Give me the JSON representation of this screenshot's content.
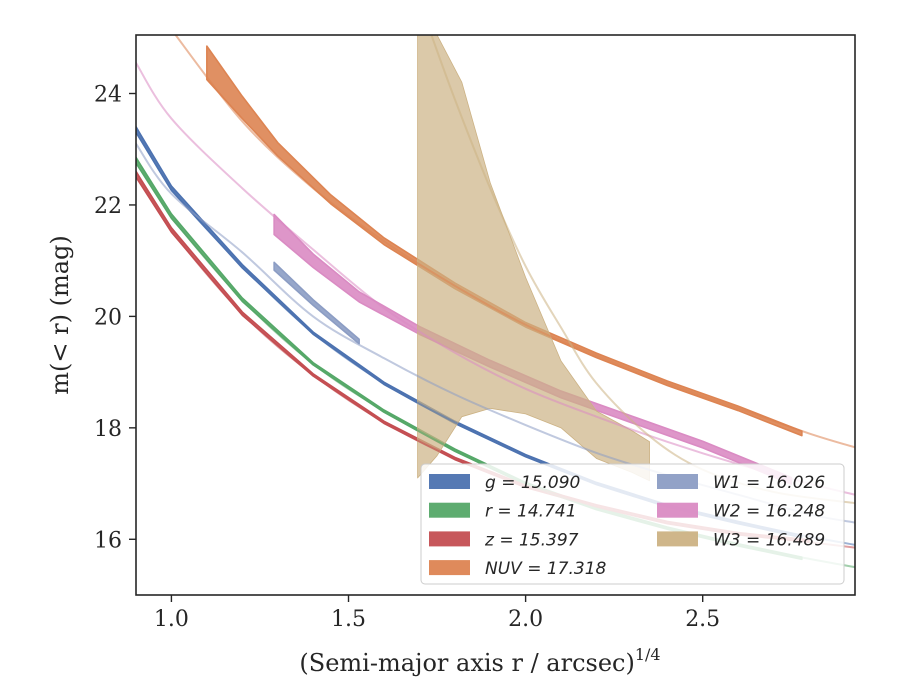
{
  "chart_data": {
    "type": "line",
    "xlabel": "(Semi-major axis r / arcsec)",
    "xlabel_superscript": "1/4",
    "ylabel": "m(< r) (mag)",
    "xlim": [
      0.9,
      2.93
    ],
    "ylim": [
      25.05,
      15.0
    ],
    "y_inverted": true,
    "x_ticks": [
      1.0,
      1.5,
      2.0,
      2.5
    ],
    "x_tick_labels": [
      "1.0",
      "1.5",
      "2.0",
      "2.5"
    ],
    "y_ticks": [
      16,
      18,
      20,
      22,
      24
    ],
    "y_tick_labels": [
      "16",
      "18",
      "20",
      "22",
      "24"
    ],
    "grid": false,
    "legend_position": "lower-right",
    "series": [
      {
        "name": "g = 15.090",
        "color": "#4c72b0",
        "model_x": [
          0.9,
          1.0,
          1.2,
          1.4,
          1.6,
          1.8,
          2.0,
          2.2,
          2.4,
          2.6,
          2.8,
          2.93
        ],
        "model_y": [
          23.4,
          22.3,
          20.9,
          19.7,
          18.8,
          18.1,
          17.5,
          17.0,
          16.6,
          16.3,
          16.05,
          15.9
        ],
        "band_x": [
          0.9,
          1.0,
          1.2,
          1.4,
          1.6,
          1.8,
          2.0,
          2.2,
          2.4,
          2.6,
          2.78
        ],
        "band_y": [
          23.35,
          22.3,
          20.9,
          19.7,
          18.8,
          18.1,
          17.5,
          17.0,
          16.6,
          16.3,
          16.05
        ],
        "band_err": [
          0.05,
          0.04,
          0.03,
          0.02,
          0.02,
          0.02,
          0.02,
          0.02,
          0.02,
          0.02,
          0.02
        ]
      },
      {
        "name": "r = 14.741",
        "color": "#55a868",
        "model_x": [
          0.9,
          1.0,
          1.2,
          1.4,
          1.6,
          1.8,
          2.0,
          2.2,
          2.4,
          2.6,
          2.8,
          2.93
        ],
        "model_y": [
          22.85,
          21.8,
          20.3,
          19.15,
          18.3,
          17.6,
          17.0,
          16.55,
          16.2,
          15.9,
          15.65,
          15.5
        ],
        "band_x": [
          0.9,
          1.0,
          1.2,
          1.4,
          1.6,
          1.8,
          2.0,
          2.2,
          2.4,
          2.6,
          2.78
        ],
        "band_y": [
          22.8,
          21.8,
          20.3,
          19.15,
          18.3,
          17.6,
          17.0,
          16.55,
          16.2,
          15.9,
          15.66
        ],
        "band_err": [
          0.05,
          0.04,
          0.03,
          0.02,
          0.02,
          0.02,
          0.02,
          0.02,
          0.02,
          0.02,
          0.02
        ]
      },
      {
        "name": "z = 15.397",
        "color": "#c44e52",
        "model_x": [
          0.9,
          1.0,
          1.2,
          1.4,
          1.6,
          1.8,
          2.0,
          2.2,
          2.4,
          2.6,
          2.8,
          2.93
        ],
        "model_y": [
          22.6,
          21.55,
          20.05,
          18.95,
          18.1,
          17.45,
          16.95,
          16.6,
          16.3,
          16.1,
          15.95,
          15.85
        ],
        "band_x": [
          0.9,
          1.0,
          1.2,
          1.4,
          1.6,
          1.8,
          2.0,
          2.2,
          2.4,
          2.6,
          2.8
        ],
        "band_y": [
          22.55,
          21.55,
          20.05,
          18.95,
          18.1,
          17.45,
          16.95,
          16.6,
          16.3,
          16.1,
          15.97
        ],
        "band_err": [
          0.05,
          0.04,
          0.03,
          0.02,
          0.02,
          0.02,
          0.02,
          0.02,
          0.02,
          0.02,
          0.02
        ]
      },
      {
        "name": "NUV = 17.318",
        "color": "#dd8452",
        "model_x": [
          1.0,
          1.2,
          1.4,
          1.6,
          1.8,
          2.0,
          2.2,
          2.4,
          2.6,
          2.8,
          2.93
        ],
        "model_y": [
          25.15,
          23.5,
          22.3,
          21.35,
          20.55,
          19.85,
          19.3,
          18.8,
          18.35,
          17.9,
          17.65
        ],
        "band_x": [
          1.1,
          1.2,
          1.3,
          1.45,
          1.6,
          1.8,
          2.0,
          2.2,
          2.4,
          2.6,
          2.78
        ],
        "band_y": [
          24.55,
          23.75,
          23.0,
          22.1,
          21.35,
          20.55,
          19.85,
          19.3,
          18.8,
          18.35,
          17.9
        ],
        "band_err": [
          0.3,
          0.2,
          0.12,
          0.08,
          0.06,
          0.05,
          0.04,
          0.04,
          0.04,
          0.04,
          0.04
        ]
      },
      {
        "name": "W1 = 16.026",
        "color": "#8c9dc4",
        "model_x": [
          0.9,
          1.0,
          1.2,
          1.4,
          1.6,
          1.8,
          2.0,
          2.2,
          2.4,
          2.6,
          2.8,
          2.93
        ],
        "model_y": [
          23.1,
          22.2,
          21.15,
          20.0,
          19.25,
          18.6,
          18.05,
          17.55,
          17.15,
          16.8,
          16.45,
          16.3
        ],
        "band_x": [
          1.29,
          1.4,
          1.53
        ],
        "band_y": [
          20.9,
          20.25,
          19.55
        ],
        "band_err": [
          0.07,
          0.05,
          0.04
        ]
      },
      {
        "name": "W2 = 16.248",
        "color": "#da8bc3",
        "model_x": [
          0.9,
          1.0,
          1.2,
          1.4,
          1.6,
          1.8,
          2.0,
          2.2,
          2.4,
          2.6,
          2.8,
          2.93
        ],
        "model_y": [
          24.55,
          23.55,
          22.3,
          21.2,
          20.15,
          19.35,
          18.7,
          18.2,
          17.75,
          17.35,
          17.0,
          16.8
        ],
        "band_x": [
          1.29,
          1.4,
          1.53,
          1.7,
          1.9,
          2.1,
          2.3,
          2.5,
          2.75
        ],
        "band_y": [
          21.65,
          21.0,
          20.35,
          19.75,
          19.15,
          18.6,
          18.15,
          17.7,
          17.05
        ],
        "band_err": [
          0.18,
          0.12,
          0.09,
          0.07,
          0.06,
          0.06,
          0.06,
          0.06,
          0.06
        ]
      },
      {
        "name": "W3 = 16.489",
        "color": "#ccb284",
        "model_x": [
          1.72,
          1.8,
          1.9,
          2.0,
          2.1,
          2.2,
          2.35,
          2.5,
          2.7,
          2.93
        ],
        "model_y": [
          25.3,
          23.9,
          22.3,
          20.9,
          19.8,
          18.8,
          17.85,
          17.25,
          16.85,
          16.65
        ],
        "band_x": [
          1.695,
          1.75,
          1.82,
          1.9,
          2.0,
          2.1,
          2.2,
          2.3,
          2.35
        ],
        "band_upper": [
          17.1,
          17.5,
          18.2,
          18.35,
          18.25,
          18.0,
          17.45,
          17.2,
          17.05
        ],
        "band_lower": [
          25.05,
          25.05,
          24.2,
          22.4,
          20.7,
          19.2,
          18.3,
          17.95,
          17.75
        ]
      }
    ],
    "legend": [
      {
        "label": "g = 15.090",
        "color": "#4c72b0"
      },
      {
        "label": "r = 14.741",
        "color": "#55a868"
      },
      {
        "label": "z = 15.397",
        "color": "#c44e52"
      },
      {
        "label": "NUV = 17.318",
        "color": "#dd8452"
      },
      {
        "label": "W1 = 16.026",
        "color": "#8c9dc4"
      },
      {
        "label": "W2 = 16.248",
        "color": "#da8bc3"
      },
      {
        "label": "W3 = 16.489",
        "color": "#ccb284"
      }
    ]
  }
}
